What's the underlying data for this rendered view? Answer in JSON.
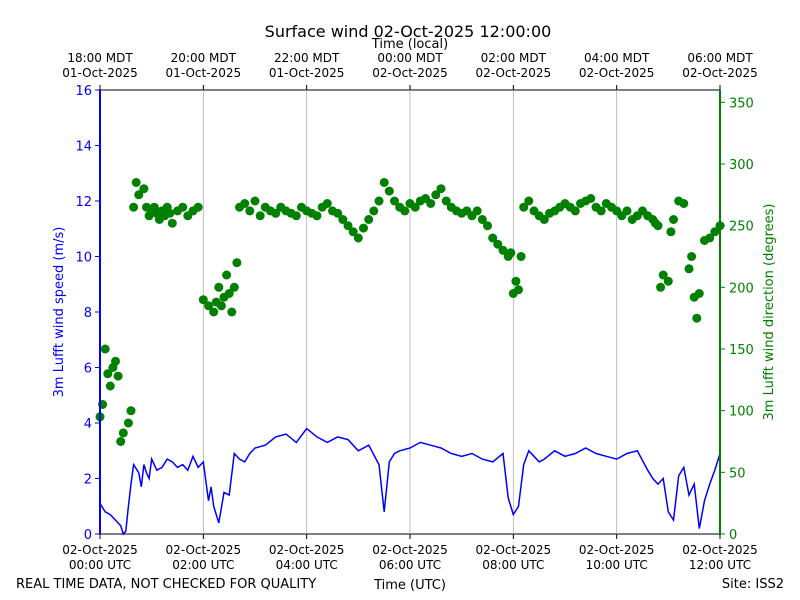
{
  "chart_data": {
    "type": "line+scatter",
    "title": "Surface wind 02-Oct-2025 12:00:00",
    "top_xlabel": "Time (local)",
    "bottom_xlabel": "Time (UTC)",
    "ylabel_left": "3m Lufft wind speed (m/s)",
    "ylabel_right": "3m Lufft wind direction (degrees)",
    "footer_left": "REAL TIME DATA, NOT CHECKED FOR QUALITY",
    "footer_right": "Site: ISS2",
    "x_range_hours_utc": [
      0,
      12
    ],
    "ylim_left": [
      0,
      16
    ],
    "ylim_right": [
      0,
      360
    ],
    "left_ticks": [
      0,
      2,
      4,
      6,
      8,
      10,
      12,
      14,
      16
    ],
    "right_ticks": [
      0,
      50,
      100,
      150,
      200,
      250,
      300,
      350
    ],
    "bottom_ticks": [
      {
        "x": 0,
        "line1": "02-Oct-2025",
        "line2": "00:00 UTC"
      },
      {
        "x": 2,
        "line1": "02-Oct-2025",
        "line2": "02:00 UTC"
      },
      {
        "x": 4,
        "line1": "02-Oct-2025",
        "line2": "04:00 UTC"
      },
      {
        "x": 6,
        "line1": "02-Oct-2025",
        "line2": "06:00 UTC"
      },
      {
        "x": 8,
        "line1": "02-Oct-2025",
        "line2": "08:00 UTC"
      },
      {
        "x": 10,
        "line1": "02-Oct-2025",
        "line2": "10:00 UTC"
      },
      {
        "x": 12,
        "line1": "02-Oct-2025",
        "line2": "12:00 UTC"
      }
    ],
    "top_ticks": [
      {
        "x": 0,
        "line1": "18:00 MDT",
        "line2": "01-Oct-2025"
      },
      {
        "x": 2,
        "line1": "20:00 MDT",
        "line2": "01-Oct-2025"
      },
      {
        "x": 4,
        "line1": "22:00 MDT",
        "line2": "01-Oct-2025"
      },
      {
        "x": 6,
        "line1": "00:00 MDT",
        "line2": "02-Oct-2025"
      },
      {
        "x": 8,
        "line1": "02:00 MDT",
        "line2": "02-Oct-2025"
      },
      {
        "x": 10,
        "line1": "04:00 MDT",
        "line2": "02-Oct-2025"
      },
      {
        "x": 12,
        "line1": "06:00 MDT",
        "line2": "02-Oct-2025"
      }
    ],
    "grid": "vertical at major ticks",
    "speed_color": "#0000ff",
    "direction_color": "#008000",
    "series": [
      {
        "name": "wind speed",
        "axis": "left",
        "style": "line",
        "x_hours": [
          0.0,
          0.1,
          0.2,
          0.3,
          0.4,
          0.45,
          0.5,
          0.55,
          0.6,
          0.65,
          0.75,
          0.8,
          0.85,
          0.9,
          0.95,
          1.0,
          1.1,
          1.2,
          1.3,
          1.4,
          1.5,
          1.6,
          1.7,
          1.8,
          1.9,
          2.0,
          2.1,
          2.15,
          2.2,
          2.3,
          2.4,
          2.5,
          2.6,
          2.7,
          2.8,
          2.9,
          3.0,
          3.2,
          3.4,
          3.6,
          3.8,
          4.0,
          4.2,
          4.4,
          4.6,
          4.8,
          5.0,
          5.2,
          5.4,
          5.5,
          5.6,
          5.7,
          5.8,
          6.0,
          6.2,
          6.4,
          6.6,
          6.8,
          7.0,
          7.2,
          7.4,
          7.6,
          7.8,
          7.9,
          8.0,
          8.1,
          8.2,
          8.3,
          8.4,
          8.5,
          8.6,
          8.8,
          9.0,
          9.2,
          9.4,
          9.6,
          9.8,
          10.0,
          10.2,
          10.4,
          10.6,
          10.7,
          10.8,
          10.9,
          11.0,
          11.1,
          11.2,
          11.3,
          11.4,
          11.5,
          11.6,
          11.7,
          11.8,
          11.9,
          12.0
        ],
        "values": [
          1.1,
          0.8,
          0.7,
          0.5,
          0.3,
          0.0,
          0.1,
          1.0,
          1.8,
          2.5,
          2.2,
          1.7,
          2.5,
          2.2,
          2.0,
          2.7,
          2.3,
          2.4,
          2.7,
          2.6,
          2.4,
          2.5,
          2.3,
          2.8,
          2.4,
          2.6,
          1.2,
          1.7,
          1.0,
          0.4,
          1.5,
          1.4,
          2.9,
          2.7,
          2.6,
          2.9,
          3.1,
          3.2,
          3.5,
          3.6,
          3.3,
          3.8,
          3.5,
          3.3,
          3.5,
          3.4,
          3.0,
          3.2,
          2.5,
          0.8,
          2.6,
          2.9,
          3.0,
          3.1,
          3.3,
          3.2,
          3.1,
          2.9,
          2.8,
          2.9,
          2.7,
          2.6,
          2.9,
          1.3,
          0.7,
          1.0,
          2.5,
          3.0,
          2.8,
          2.6,
          2.7,
          3.0,
          2.8,
          2.9,
          3.1,
          2.9,
          2.8,
          2.7,
          2.9,
          3.0,
          2.3,
          2.0,
          1.8,
          2.0,
          0.8,
          0.5,
          2.1,
          2.4,
          1.4,
          1.8,
          0.2,
          1.2,
          1.8,
          2.3,
          2.9
        ]
      },
      {
        "name": "wind direction",
        "axis": "right",
        "style": "markers",
        "x_hours": [
          0.0,
          0.05,
          0.1,
          0.15,
          0.2,
          0.25,
          0.3,
          0.35,
          0.4,
          0.45,
          0.55,
          0.6,
          0.65,
          0.7,
          0.75,
          0.85,
          0.9,
          0.95,
          1.0,
          1.05,
          1.1,
          1.15,
          1.2,
          1.25,
          1.3,
          1.35,
          1.4,
          1.5,
          1.6,
          1.7,
          1.8,
          1.9,
          2.0,
          2.1,
          2.2,
          2.25,
          2.3,
          2.35,
          2.4,
          2.45,
          2.5,
          2.55,
          2.6,
          2.65,
          2.7,
          2.8,
          2.9,
          3.0,
          3.1,
          3.2,
          3.3,
          3.4,
          3.5,
          3.6,
          3.7,
          3.8,
          3.9,
          4.0,
          4.1,
          4.2,
          4.3,
          4.4,
          4.5,
          4.6,
          4.7,
          4.8,
          4.9,
          5.0,
          5.1,
          5.2,
          5.3,
          5.4,
          5.5,
          5.6,
          5.7,
          5.8,
          5.9,
          6.0,
          6.1,
          6.2,
          6.3,
          6.4,
          6.5,
          6.6,
          6.7,
          6.8,
          6.9,
          7.0,
          7.1,
          7.2,
          7.3,
          7.4,
          7.5,
          7.6,
          7.7,
          7.8,
          7.9,
          7.95,
          8.0,
          8.05,
          8.1,
          8.15,
          8.2,
          8.3,
          8.4,
          8.5,
          8.6,
          8.7,
          8.8,
          8.9,
          9.0,
          9.1,
          9.2,
          9.3,
          9.4,
          9.5,
          9.6,
          9.7,
          9.8,
          9.9,
          10.0,
          10.1,
          10.2,
          10.3,
          10.4,
          10.5,
          10.6,
          10.7,
          10.75,
          10.8,
          10.85,
          10.9,
          11.0,
          11.05,
          11.1,
          11.2,
          11.3,
          11.4,
          11.45,
          11.5,
          11.55,
          11.6,
          11.7,
          11.8,
          11.9,
          12.0
        ],
        "values": [
          95,
          105,
          150,
          130,
          120,
          135,
          140,
          128,
          75,
          82,
          90,
          100,
          265,
          285,
          275,
          280,
          265,
          258,
          262,
          265,
          260,
          255,
          262,
          258,
          265,
          260,
          252,
          262,
          265,
          258,
          262,
          265,
          190,
          185,
          180,
          188,
          200,
          185,
          192,
          210,
          195,
          180,
          200,
          220,
          265,
          268,
          262,
          270,
          258,
          265,
          262,
          260,
          265,
          262,
          260,
          258,
          265,
          262,
          260,
          258,
          265,
          268,
          262,
          260,
          255,
          250,
          245,
          240,
          248,
          255,
          262,
          270,
          285,
          278,
          270,
          265,
          262,
          268,
          265,
          270,
          272,
          268,
          275,
          280,
          270,
          265,
          262,
          260,
          262,
          258,
          262,
          255,
          250,
          240,
          235,
          230,
          225,
          228,
          195,
          205,
          198,
          225,
          265,
          270,
          262,
          258,
          255,
          260,
          262,
          265,
          268,
          265,
          262,
          268,
          270,
          272,
          265,
          262,
          268,
          265,
          262,
          258,
          262,
          255,
          258,
          262,
          258,
          255,
          252,
          250,
          200,
          210,
          205,
          245,
          255,
          270,
          268,
          215,
          225,
          192,
          175,
          195,
          238,
          240,
          245,
          250
        ]
      }
    ]
  }
}
